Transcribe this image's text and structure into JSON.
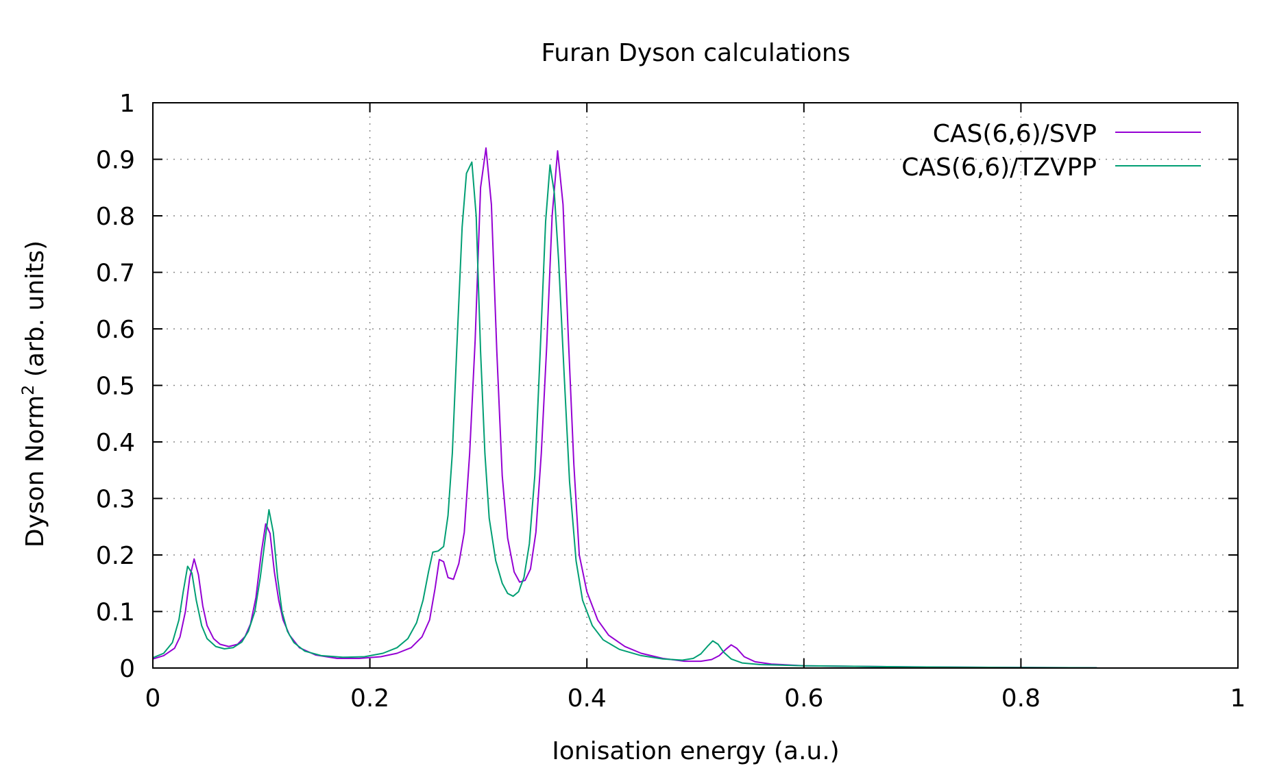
{
  "chart_data": {
    "type": "line",
    "title": "Furan Dyson calculations",
    "xlabel": "Ionisation energy (a.u.)",
    "ylabel_main": "Dyson Norm",
    "ylabel_sup": "2",
    "ylabel_tail": " (arb. units)",
    "xlim": [
      0,
      1
    ],
    "ylim": [
      0,
      1
    ],
    "x_ticks": [
      0,
      0.2,
      0.4,
      0.6,
      0.8,
      1
    ],
    "x_tick_labels": [
      "0",
      "0.2",
      "0.4",
      "0.6",
      "0.8",
      "1"
    ],
    "y_ticks": [
      0,
      0.1,
      0.2,
      0.3,
      0.4,
      0.5,
      0.6,
      0.7,
      0.8,
      0.9,
      1
    ],
    "y_tick_labels": [
      "0",
      "0.1",
      "0.2",
      "0.3",
      "0.4",
      "0.5",
      "0.6",
      "0.7",
      "0.8",
      "0.9",
      "1"
    ],
    "grid": true,
    "legend_position": "top-right",
    "series": [
      {
        "name": "CAS(6,6)/SVP",
        "color": "#9400d3",
        "points": [
          [
            0.0,
            0.016
          ],
          [
            0.01,
            0.022
          ],
          [
            0.02,
            0.035
          ],
          [
            0.025,
            0.055
          ],
          [
            0.03,
            0.1
          ],
          [
            0.034,
            0.16
          ],
          [
            0.038,
            0.193
          ],
          [
            0.042,
            0.165
          ],
          [
            0.046,
            0.11
          ],
          [
            0.05,
            0.075
          ],
          [
            0.056,
            0.052
          ],
          [
            0.062,
            0.042
          ],
          [
            0.07,
            0.038
          ],
          [
            0.078,
            0.042
          ],
          [
            0.085,
            0.056
          ],
          [
            0.09,
            0.078
          ],
          [
            0.095,
            0.125
          ],
          [
            0.1,
            0.205
          ],
          [
            0.104,
            0.255
          ],
          [
            0.108,
            0.238
          ],
          [
            0.112,
            0.17
          ],
          [
            0.116,
            0.12
          ],
          [
            0.12,
            0.085
          ],
          [
            0.126,
            0.058
          ],
          [
            0.135,
            0.036
          ],
          [
            0.15,
            0.023
          ],
          [
            0.17,
            0.017
          ],
          [
            0.19,
            0.017
          ],
          [
            0.21,
            0.02
          ],
          [
            0.225,
            0.026
          ],
          [
            0.238,
            0.036
          ],
          [
            0.248,
            0.055
          ],
          [
            0.255,
            0.085
          ],
          [
            0.26,
            0.14
          ],
          [
            0.264,
            0.192
          ],
          [
            0.268,
            0.188
          ],
          [
            0.272,
            0.16
          ],
          [
            0.277,
            0.157
          ],
          [
            0.282,
            0.185
          ],
          [
            0.287,
            0.24
          ],
          [
            0.292,
            0.38
          ],
          [
            0.297,
            0.58
          ],
          [
            0.302,
            0.85
          ],
          [
            0.307,
            0.92
          ],
          [
            0.312,
            0.82
          ],
          [
            0.317,
            0.56
          ],
          [
            0.322,
            0.34
          ],
          [
            0.327,
            0.23
          ],
          [
            0.333,
            0.17
          ],
          [
            0.338,
            0.152
          ],
          [
            0.343,
            0.155
          ],
          [
            0.348,
            0.175
          ],
          [
            0.353,
            0.24
          ],
          [
            0.358,
            0.38
          ],
          [
            0.363,
            0.57
          ],
          [
            0.368,
            0.8
          ],
          [
            0.373,
            0.915
          ],
          [
            0.378,
            0.82
          ],
          [
            0.383,
            0.58
          ],
          [
            0.388,
            0.36
          ],
          [
            0.393,
            0.2
          ],
          [
            0.4,
            0.135
          ],
          [
            0.41,
            0.085
          ],
          [
            0.42,
            0.058
          ],
          [
            0.435,
            0.038
          ],
          [
            0.45,
            0.026
          ],
          [
            0.47,
            0.017
          ],
          [
            0.49,
            0.012
          ],
          [
            0.505,
            0.012
          ],
          [
            0.515,
            0.015
          ],
          [
            0.522,
            0.022
          ],
          [
            0.528,
            0.033
          ],
          [
            0.533,
            0.041
          ],
          [
            0.538,
            0.035
          ],
          [
            0.545,
            0.02
          ],
          [
            0.555,
            0.011
          ],
          [
            0.57,
            0.007
          ],
          [
            0.6,
            0.004
          ],
          [
            0.7,
            0.002
          ],
          [
            0.8,
            0.001
          ],
          [
            0.87,
            0.0005
          ]
        ]
      },
      {
        "name": "CAS(6,6)/TZVPP",
        "color": "#009e73",
        "points": [
          [
            0.0,
            0.018
          ],
          [
            0.01,
            0.026
          ],
          [
            0.018,
            0.045
          ],
          [
            0.024,
            0.085
          ],
          [
            0.028,
            0.135
          ],
          [
            0.032,
            0.18
          ],
          [
            0.036,
            0.168
          ],
          [
            0.04,
            0.12
          ],
          [
            0.045,
            0.075
          ],
          [
            0.05,
            0.052
          ],
          [
            0.058,
            0.038
          ],
          [
            0.066,
            0.034
          ],
          [
            0.074,
            0.036
          ],
          [
            0.082,
            0.046
          ],
          [
            0.088,
            0.065
          ],
          [
            0.094,
            0.1
          ],
          [
            0.099,
            0.16
          ],
          [
            0.103,
            0.22
          ],
          [
            0.107,
            0.28
          ],
          [
            0.111,
            0.24
          ],
          [
            0.115,
            0.16
          ],
          [
            0.119,
            0.1
          ],
          [
            0.124,
            0.065
          ],
          [
            0.13,
            0.045
          ],
          [
            0.14,
            0.03
          ],
          [
            0.155,
            0.022
          ],
          [
            0.175,
            0.019
          ],
          [
            0.195,
            0.02
          ],
          [
            0.212,
            0.026
          ],
          [
            0.225,
            0.036
          ],
          [
            0.235,
            0.052
          ],
          [
            0.243,
            0.08
          ],
          [
            0.249,
            0.12
          ],
          [
            0.254,
            0.17
          ],
          [
            0.258,
            0.205
          ],
          [
            0.263,
            0.207
          ],
          [
            0.268,
            0.215
          ],
          [
            0.272,
            0.27
          ],
          [
            0.276,
            0.38
          ],
          [
            0.28,
            0.56
          ],
          [
            0.285,
            0.78
          ],
          [
            0.289,
            0.875
          ],
          [
            0.294,
            0.895
          ],
          [
            0.298,
            0.8
          ],
          [
            0.302,
            0.56
          ],
          [
            0.306,
            0.38
          ],
          [
            0.31,
            0.265
          ],
          [
            0.316,
            0.19
          ],
          [
            0.322,
            0.15
          ],
          [
            0.327,
            0.132
          ],
          [
            0.332,
            0.127
          ],
          [
            0.337,
            0.135
          ],
          [
            0.342,
            0.16
          ],
          [
            0.347,
            0.22
          ],
          [
            0.352,
            0.34
          ],
          [
            0.357,
            0.56
          ],
          [
            0.362,
            0.79
          ],
          [
            0.366,
            0.89
          ],
          [
            0.37,
            0.84
          ],
          [
            0.374,
            0.72
          ],
          [
            0.379,
            0.52
          ],
          [
            0.384,
            0.33
          ],
          [
            0.39,
            0.19
          ],
          [
            0.396,
            0.12
          ],
          [
            0.405,
            0.075
          ],
          [
            0.415,
            0.05
          ],
          [
            0.43,
            0.033
          ],
          [
            0.45,
            0.022
          ],
          [
            0.47,
            0.016
          ],
          [
            0.488,
            0.014
          ],
          [
            0.498,
            0.017
          ],
          [
            0.505,
            0.025
          ],
          [
            0.511,
            0.038
          ],
          [
            0.516,
            0.048
          ],
          [
            0.521,
            0.042
          ],
          [
            0.526,
            0.028
          ],
          [
            0.533,
            0.016
          ],
          [
            0.543,
            0.009
          ],
          [
            0.56,
            0.006
          ],
          [
            0.6,
            0.004
          ],
          [
            0.7,
            0.002
          ],
          [
            0.8,
            0.001
          ],
          [
            0.87,
            0.0005
          ]
        ]
      }
    ]
  }
}
